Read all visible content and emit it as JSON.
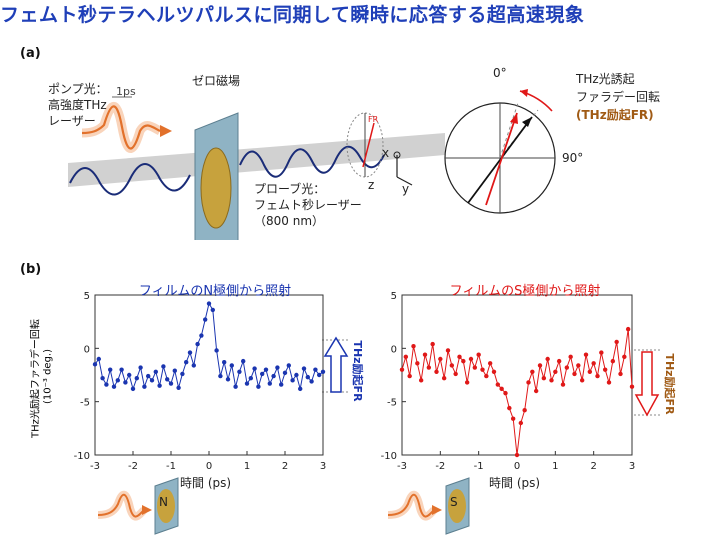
{
  "title": "フェムト秒テラヘルツパルスに同期して瞬時に応答する超高速現象",
  "panel_a": {
    "label": "(a)",
    "pump_label_1": "ポンプ光：",
    "pump_label_2": "高強度THz",
    "pump_label_3": "レーザー",
    "pulse_width": "1ps",
    "zero_field": "ゼロ磁場",
    "probe_label_1": "プローブ光：",
    "probe_label_2": "フェムト秒レーザー",
    "probe_label_3": "（800 nm）",
    "axis_x": "x",
    "axis_y": "y",
    "axis_z": "z",
    "polar_0": "0°",
    "polar_90": "90°",
    "fr_label_1": "THz光誘起",
    "fr_label_2": "ファラデー回転",
    "fr_label_3": "(THz励起FR)",
    "mini_label": "FR"
  },
  "panel_b": {
    "label": "(b)",
    "y_label_1": "THz光励起ファラデー回転",
    "y_label_2": "(10⁻³ deg.)",
    "fr_side_label": "THz励起FR"
  },
  "colors": {
    "blue": "#1a35b0",
    "red": "#e01818",
    "orange": "#c8782a",
    "title": "#1f3fb8"
  },
  "chart_data": [
    {
      "type": "scatter",
      "title": "フィルムのN極側から照射",
      "xlabel": "時間 (ps)",
      "ylabel": "THz光励起ファラデー回転 (10⁻³ deg.)",
      "xlim": [
        -3,
        3
      ],
      "ylim": [
        -10,
        5
      ],
      "xticks": [
        -3,
        -2,
        -1,
        0,
        1,
        2,
        3
      ],
      "yticks": [
        5,
        0,
        -5,
        -10
      ],
      "marker_label": "N",
      "color": "#1a35b0",
      "x": [
        -3.0,
        -2.9,
        -2.8,
        -2.7,
        -2.6,
        -2.5,
        -2.4,
        -2.3,
        -2.2,
        -2.1,
        -2.0,
        -1.9,
        -1.8,
        -1.7,
        -1.6,
        -1.5,
        -1.4,
        -1.3,
        -1.2,
        -1.1,
        -1.0,
        -0.9,
        -0.8,
        -0.7,
        -0.6,
        -0.5,
        -0.4,
        -0.3,
        -0.2,
        -0.1,
        0.0,
        0.1,
        0.2,
        0.3,
        0.4,
        0.5,
        0.6,
        0.7,
        0.8,
        0.9,
        1.0,
        1.1,
        1.2,
        1.3,
        1.4,
        1.5,
        1.6,
        1.7,
        1.8,
        1.9,
        2.0,
        2.1,
        2.2,
        2.3,
        2.4,
        2.5,
        2.6,
        2.7,
        2.8,
        2.9,
        3.0
      ],
      "y": [
        -1.5,
        -1.0,
        -2.8,
        -3.4,
        -2.0,
        -3.6,
        -3.0,
        -2.0,
        -3.2,
        -2.5,
        -3.8,
        -2.8,
        -1.8,
        -3.6,
        -2.6,
        -3.0,
        -2.2,
        -3.5,
        -1.7,
        -2.9,
        -3.3,
        -2.1,
        -3.7,
        -2.4,
        -1.3,
        -0.4,
        -1.6,
        0.4,
        1.2,
        2.7,
        4.2,
        3.6,
        -0.2,
        -2.6,
        -1.3,
        -2.9,
        -1.6,
        -3.6,
        -2.2,
        -1.2,
        -3.3,
        -2.8,
        -1.9,
        -3.6,
        -2.4,
        -2.0,
        -3.3,
        -2.6,
        -1.8,
        -3.4,
        -2.3,
        -1.6,
        -3.0,
        -2.5,
        -3.8,
        -1.9,
        -2.7,
        -3.1,
        -2.0,
        -2.5,
        -2.2
      ]
    },
    {
      "type": "scatter",
      "title": "フィルムのS極側から照射",
      "xlabel": "時間 (ps)",
      "ylabel": "",
      "xlim": [
        -3,
        3
      ],
      "ylim": [
        -10,
        5
      ],
      "xticks": [
        -3,
        -2,
        -1,
        0,
        1,
        2,
        3
      ],
      "yticks": [
        5,
        0,
        -5,
        -10
      ],
      "marker_label": "S",
      "color": "#e01818",
      "x": [
        -3.0,
        -2.9,
        -2.8,
        -2.7,
        -2.6,
        -2.5,
        -2.4,
        -2.3,
        -2.2,
        -2.1,
        -2.0,
        -1.9,
        -1.8,
        -1.7,
        -1.6,
        -1.5,
        -1.4,
        -1.3,
        -1.2,
        -1.1,
        -1.0,
        -0.9,
        -0.8,
        -0.7,
        -0.6,
        -0.5,
        -0.4,
        -0.3,
        -0.2,
        -0.1,
        0.0,
        0.1,
        0.2,
        0.3,
        0.4,
        0.5,
        0.6,
        0.7,
        0.8,
        0.9,
        1.0,
        1.1,
        1.2,
        1.3,
        1.4,
        1.5,
        1.6,
        1.7,
        1.8,
        1.9,
        2.0,
        2.1,
        2.2,
        2.3,
        2.4,
        2.5,
        2.6,
        2.7,
        2.8,
        2.9,
        3.0
      ],
      "y": [
        -2.0,
        -0.8,
        -2.6,
        0.2,
        -1.4,
        -3.0,
        -0.6,
        -1.8,
        0.4,
        -2.2,
        -1.0,
        -2.8,
        -0.2,
        -1.6,
        -2.4,
        -0.8,
        -1.2,
        -3.2,
        -1.0,
        -1.8,
        -0.6,
        -2.0,
        -2.6,
        -1.4,
        -2.2,
        -3.4,
        -3.8,
        -4.2,
        -5.6,
        -6.6,
        -10.0,
        -7.0,
        -5.8,
        -3.2,
        -2.2,
        -4.0,
        -1.6,
        -2.8,
        -1.0,
        -3.0,
        -2.2,
        -1.2,
        -3.4,
        -1.8,
        -0.8,
        -2.4,
        -1.6,
        -3.0,
        -0.6,
        -2.2,
        -1.4,
        -2.6,
        -0.4,
        -2.0,
        -3.2,
        -1.2,
        0.6,
        -2.4,
        -0.8,
        1.8,
        -3.6
      ]
    }
  ]
}
